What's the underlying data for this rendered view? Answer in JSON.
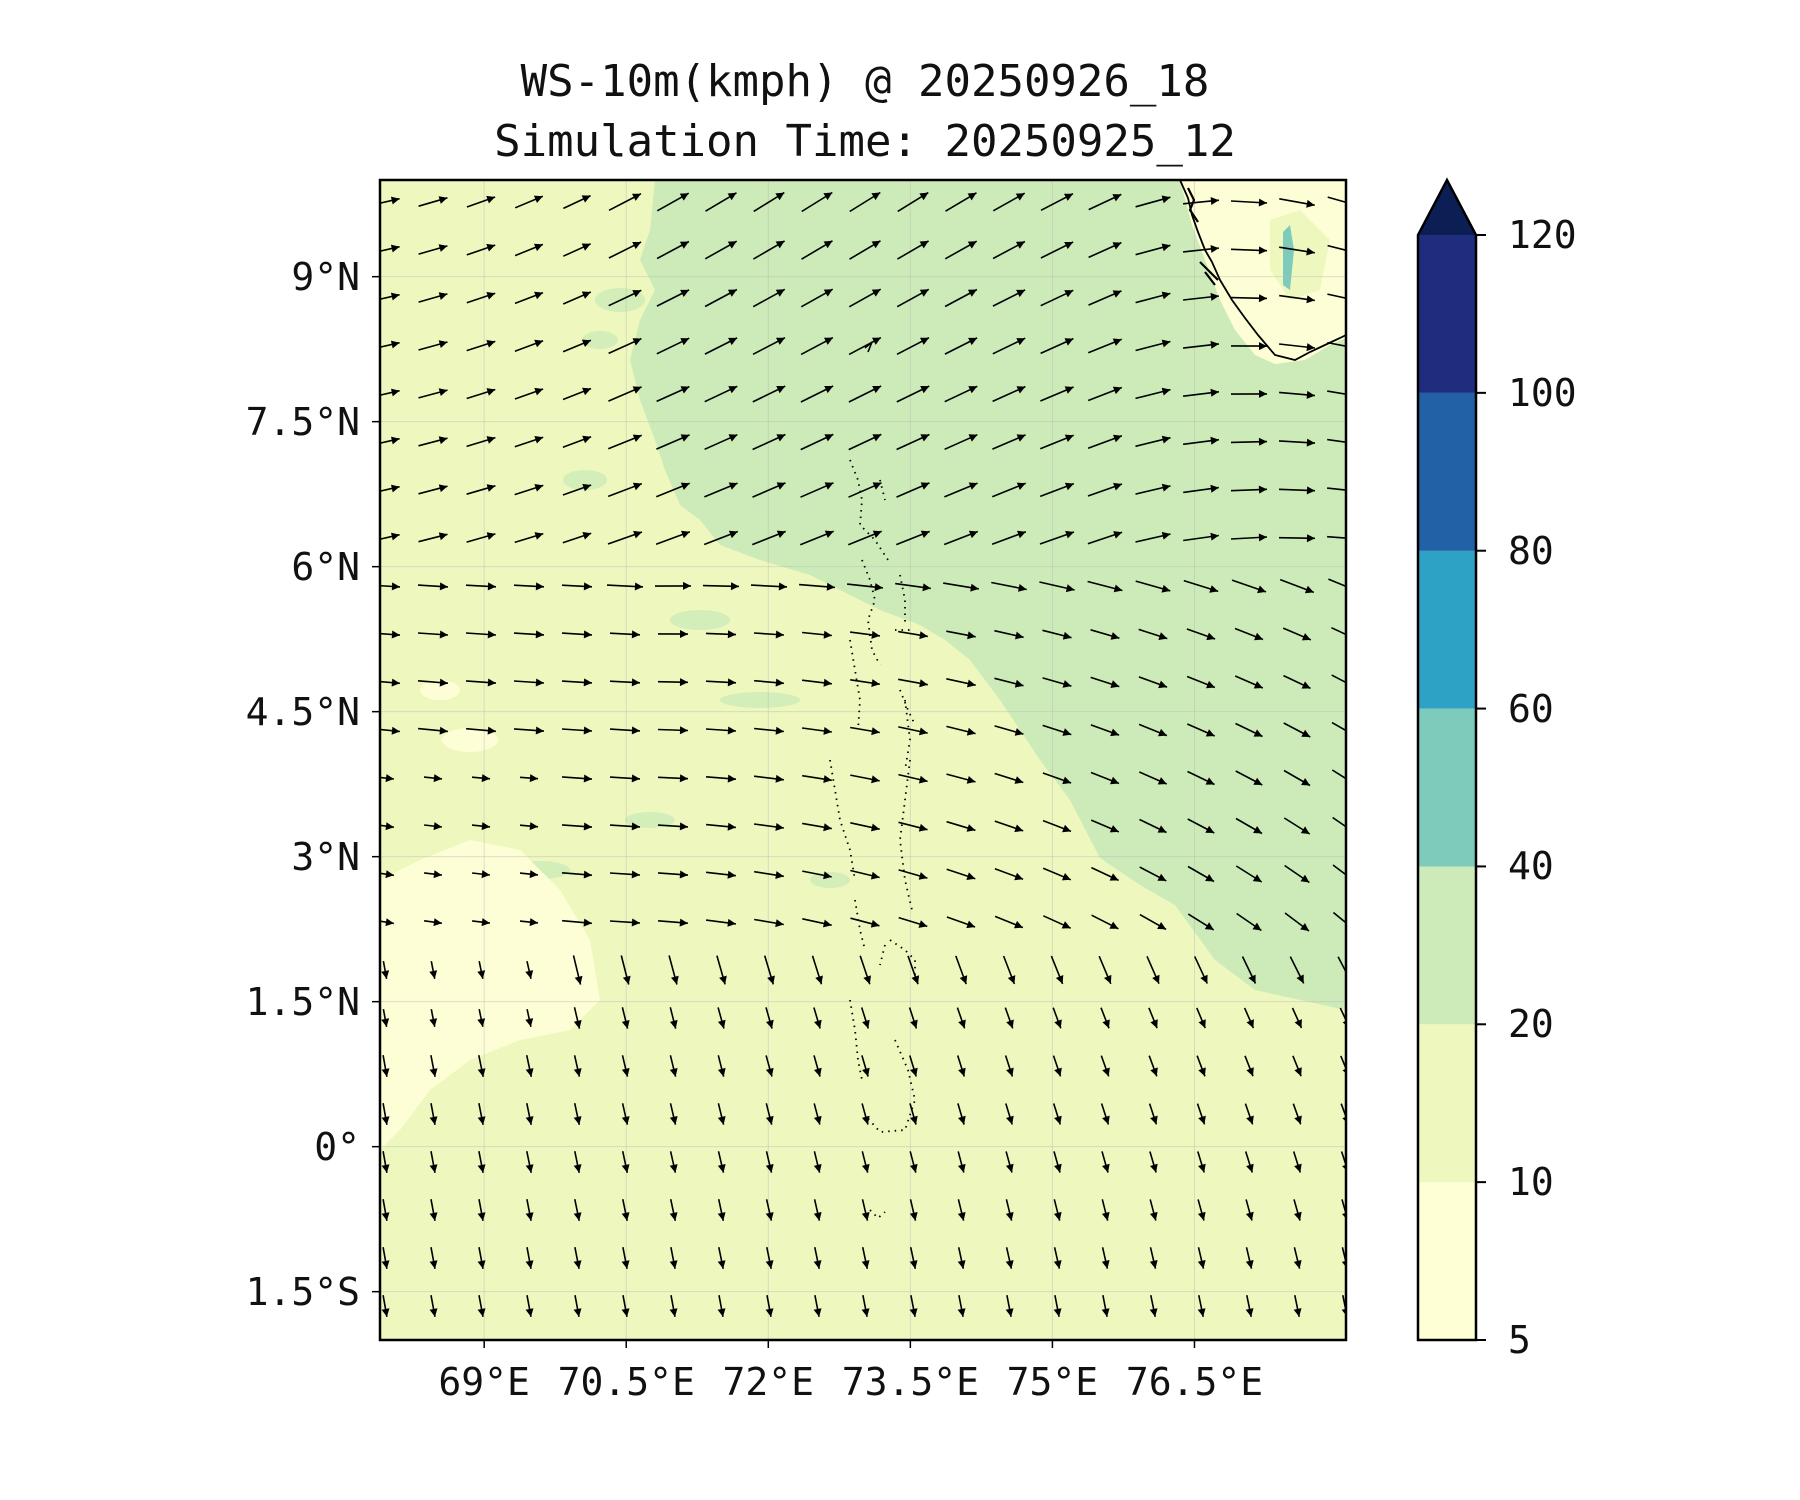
{
  "figure": {
    "title_line1": "WS-10m(kmph) @ 20250926_18",
    "title_line2": "Simulation Time: 20250925_12"
  },
  "map": {
    "lon_range": [
      67.9,
      78.1
    ],
    "lat_range": [
      -2.0,
      10.0
    ],
    "lat_ticks": [
      {
        "value": 9.0,
        "label": "9°N"
      },
      {
        "value": 7.5,
        "label": "7.5°N"
      },
      {
        "value": 6.0,
        "label": "6°N"
      },
      {
        "value": 4.5,
        "label": "4.5°N"
      },
      {
        "value": 3.0,
        "label": "3°N"
      },
      {
        "value": 1.5,
        "label": "1.5°N"
      },
      {
        "value": 0.0,
        "label": "0°"
      },
      {
        "value": -1.5,
        "label": "1.5°S"
      }
    ],
    "lon_ticks": [
      {
        "value": 69.0,
        "label": "69°E"
      },
      {
        "value": 70.5,
        "label": "70.5°E"
      },
      {
        "value": 72.0,
        "label": "72°E"
      },
      {
        "value": 73.5,
        "label": "73.5°E"
      },
      {
        "value": 75.0,
        "label": "75°E"
      },
      {
        "value": 76.5,
        "label": "76.5°E"
      }
    ],
    "field_colors": {
      "calm": "#fdfed6",
      "low": "#eef8be",
      "moderate": "#ccebb8",
      "strong": "#7ecbbb"
    }
  },
  "colorbar": {
    "levels": [
      {
        "value": 5,
        "label": "5"
      },
      {
        "value": 10,
        "label": "10"
      },
      {
        "value": 20,
        "label": "20"
      },
      {
        "value": 40,
        "label": "40"
      },
      {
        "value": 60,
        "label": "60"
      },
      {
        "value": 80,
        "label": "80"
      },
      {
        "value": 100,
        "label": "100"
      },
      {
        "value": 120,
        "label": "120"
      }
    ],
    "colors": [
      "#feffd5",
      "#eef8be",
      "#ccebb8",
      "#7ecbbb",
      "#2ea2c5",
      "#2361a6",
      "#1e2d7e"
    ],
    "extend_color": "#0c1f55"
  }
}
